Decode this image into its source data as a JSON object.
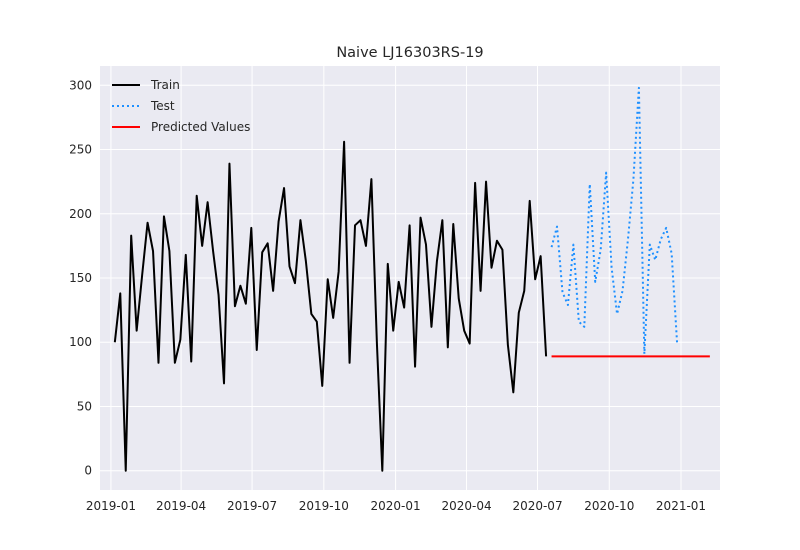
{
  "chart_data": {
    "type": "line",
    "title": "Naive LJ16303RS-19",
    "xlabel": "",
    "ylabel": "",
    "x_ticks": [
      "2019-01",
      "2019-04",
      "2019-07",
      "2019-10",
      "2020-01",
      "2020-04",
      "2020-07",
      "2020-10",
      "2021-01"
    ],
    "y_ticks": [
      0,
      50,
      100,
      150,
      200,
      250,
      300
    ],
    "xlim": [
      "2018-12-18",
      "2021-02-20"
    ],
    "ylim": [
      -15,
      315
    ],
    "grid": true,
    "legend_position": "top-left",
    "series": [
      {
        "name": "Train",
        "color": "#000000",
        "style": "solid",
        "points": [
          [
            "2019-01-06",
            100
          ],
          [
            "2019-01-13",
            138
          ],
          [
            "2019-01-20",
            0
          ],
          [
            "2019-01-27",
            183
          ],
          [
            "2019-02-03",
            109
          ],
          [
            "2019-02-10",
            152
          ],
          [
            "2019-02-17",
            193
          ],
          [
            "2019-02-24",
            171
          ],
          [
            "2019-03-03",
            84
          ],
          [
            "2019-03-10",
            198
          ],
          [
            "2019-03-17",
            171
          ],
          [
            "2019-03-24",
            84
          ],
          [
            "2019-03-31",
            102
          ],
          [
            "2019-04-07",
            168
          ],
          [
            "2019-04-14",
            85
          ],
          [
            "2019-04-21",
            214
          ],
          [
            "2019-04-28",
            175
          ],
          [
            "2019-05-05",
            209
          ],
          [
            "2019-05-12",
            171
          ],
          [
            "2019-05-19",
            137
          ],
          [
            "2019-05-26",
            68
          ],
          [
            "2019-06-02",
            239
          ],
          [
            "2019-06-09",
            128
          ],
          [
            "2019-06-16",
            144
          ],
          [
            "2019-06-23",
            130
          ],
          [
            "2019-06-30",
            189
          ],
          [
            "2019-07-07",
            94
          ],
          [
            "2019-07-14",
            170
          ],
          [
            "2019-07-21",
            177
          ],
          [
            "2019-07-28",
            140
          ],
          [
            "2019-08-04",
            194
          ],
          [
            "2019-08-11",
            220
          ],
          [
            "2019-08-18",
            159
          ],
          [
            "2019-08-25",
            146
          ],
          [
            "2019-09-01",
            195
          ],
          [
            "2019-09-08",
            163
          ],
          [
            "2019-09-15",
            122
          ],
          [
            "2019-09-22",
            116
          ],
          [
            "2019-09-29",
            66
          ],
          [
            "2019-10-06",
            149
          ],
          [
            "2019-10-13",
            119
          ],
          [
            "2019-10-20",
            155
          ],
          [
            "2019-10-27",
            256
          ],
          [
            "2019-11-03",
            84
          ],
          [
            "2019-11-10",
            191
          ],
          [
            "2019-11-17",
            195
          ],
          [
            "2019-11-24",
            175
          ],
          [
            "2019-12-01",
            227
          ],
          [
            "2019-12-08",
            100
          ],
          [
            "2019-12-15",
            0
          ],
          [
            "2019-12-22",
            161
          ],
          [
            "2019-12-29",
            109
          ],
          [
            "2020-01-05",
            147
          ],
          [
            "2020-01-12",
            127
          ],
          [
            "2020-01-19",
            191
          ],
          [
            "2020-01-26",
            81
          ],
          [
            "2020-02-02",
            197
          ],
          [
            "2020-02-09",
            176
          ],
          [
            "2020-02-16",
            112
          ],
          [
            "2020-02-23",
            163
          ],
          [
            "2020-03-01",
            195
          ],
          [
            "2020-03-08",
            96
          ],
          [
            "2020-03-15",
            192
          ],
          [
            "2020-03-22",
            134
          ],
          [
            "2020-03-29",
            109
          ],
          [
            "2020-04-05",
            99
          ],
          [
            "2020-04-12",
            224
          ],
          [
            "2020-04-19",
            140
          ],
          [
            "2020-04-26",
            225
          ],
          [
            "2020-05-03",
            158
          ],
          [
            "2020-05-10",
            179
          ],
          [
            "2020-05-17",
            172
          ],
          [
            "2020-05-24",
            98
          ],
          [
            "2020-05-31",
            61
          ],
          [
            "2020-06-07",
            123
          ],
          [
            "2020-06-14",
            140
          ],
          [
            "2020-06-21",
            210
          ],
          [
            "2020-06-28",
            149
          ],
          [
            "2020-07-05",
            167
          ],
          [
            "2020-07-12",
            89
          ]
        ]
      },
      {
        "name": "Test",
        "color": "#1e90ff",
        "style": "dotted",
        "points": [
          [
            "2020-07-19",
            174
          ],
          [
            "2020-07-26",
            190
          ],
          [
            "2020-08-02",
            139
          ],
          [
            "2020-08-09",
            129
          ],
          [
            "2020-08-16",
            176
          ],
          [
            "2020-08-23",
            116
          ],
          [
            "2020-08-30",
            112
          ],
          [
            "2020-09-06",
            223
          ],
          [
            "2020-09-13",
            147
          ],
          [
            "2020-09-20",
            172
          ],
          [
            "2020-09-27",
            232
          ],
          [
            "2020-10-04",
            158
          ],
          [
            "2020-10-11",
            122
          ],
          [
            "2020-10-18",
            140
          ],
          [
            "2020-10-25",
            180
          ],
          [
            "2020-11-01",
            227
          ],
          [
            "2020-11-08",
            298
          ],
          [
            "2020-11-15",
            91
          ],
          [
            "2020-11-22",
            176
          ],
          [
            "2020-11-29",
            164
          ],
          [
            "2020-12-06",
            180
          ],
          [
            "2020-12-13",
            189
          ],
          [
            "2020-12-20",
            169
          ],
          [
            "2020-12-27",
            99
          ]
        ]
      },
      {
        "name": "Predicted Values",
        "color": "#ff0000",
        "style": "solid",
        "points": [
          [
            "2020-07-19",
            89
          ],
          [
            "2021-02-07",
            89
          ]
        ]
      }
    ]
  }
}
